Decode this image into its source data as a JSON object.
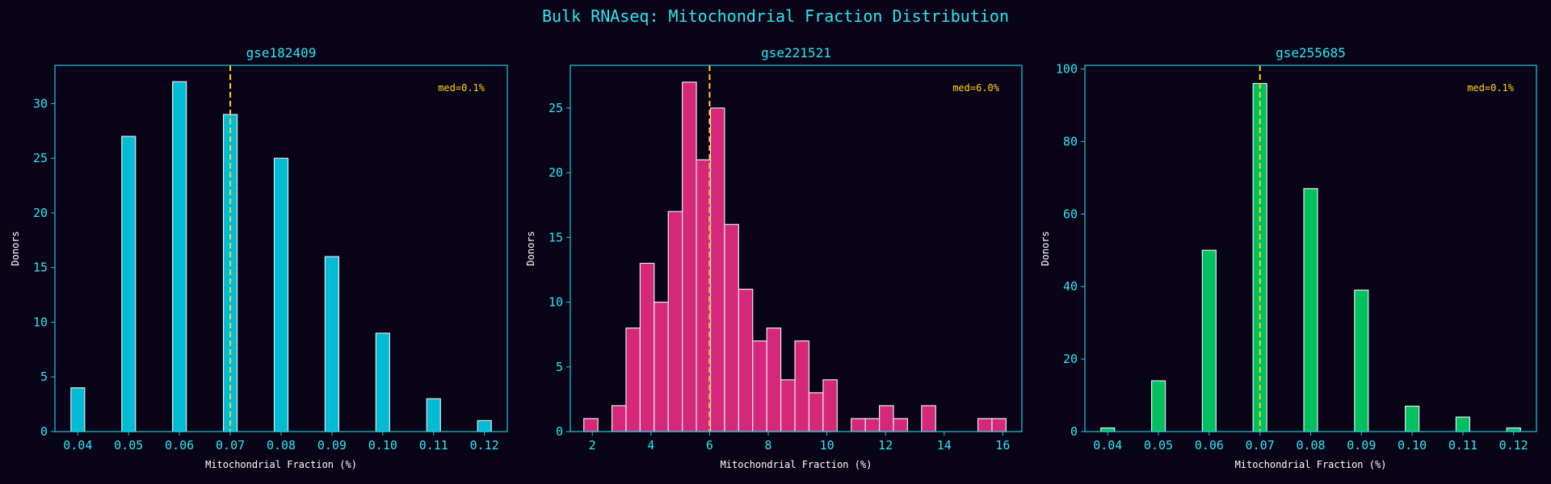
{
  "figure": {
    "title": "Bulk RNAseq: Mitochondrial Fraction Distribution",
    "background": "#0a0418",
    "axis_color": "#1ec8d8",
    "tick_color": "#2ee6f0",
    "median_color": "#ffd21f",
    "label_color": "#ffffff"
  },
  "chart_data": [
    {
      "type": "bar",
      "title": "gse182409",
      "xlabel": "Mitochondrial Fraction (%)",
      "ylabel": "Donors",
      "color": "#00bcd4",
      "xlim": [
        0.0355,
        0.1245
      ],
      "ylim": [
        0,
        33.5
      ],
      "xticks": [
        0.04,
        0.05,
        0.06,
        0.07,
        0.08,
        0.09,
        0.1,
        0.11,
        0.12
      ],
      "xtick_labels": [
        "0.04",
        "0.05",
        "0.06",
        "0.07",
        "0.08",
        "0.09",
        "0.10",
        "0.11",
        "0.12"
      ],
      "yticks": [
        0,
        5,
        10,
        15,
        20,
        25,
        30
      ],
      "bin_width": 0.0027,
      "bins": [
        {
          "x": 0.04,
          "count": 4
        },
        {
          "x": 0.05,
          "count": 27
        },
        {
          "x": 0.06,
          "count": 32
        },
        {
          "x": 0.07,
          "count": 29
        },
        {
          "x": 0.08,
          "count": 25
        },
        {
          "x": 0.09,
          "count": 16
        },
        {
          "x": 0.1,
          "count": 9
        },
        {
          "x": 0.11,
          "count": 3
        },
        {
          "x": 0.12,
          "count": 1
        }
      ],
      "median_x": 0.07,
      "annotation": "med=0.1%"
    },
    {
      "type": "bar",
      "title": "gse221521",
      "xlabel": "Mitochondrial Fraction (%)",
      "ylabel": "Donors",
      "color": "#d6287a",
      "xlim": [
        1.25,
        16.65
      ],
      "ylim": [
        0,
        28.3
      ],
      "xticks": [
        2,
        4,
        6,
        8,
        10,
        12,
        14,
        16
      ],
      "xtick_labels": [
        "2",
        "4",
        "6",
        "8",
        "10",
        "12",
        "14",
        "16"
      ],
      "yticks": [
        0,
        5,
        10,
        15,
        20,
        25
      ],
      "bin_width": 0.479,
      "bins": [
        {
          "x": 1.95,
          "count": 1
        },
        {
          "x": 2.43,
          "count": 0
        },
        {
          "x": 2.91,
          "count": 2
        },
        {
          "x": 3.39,
          "count": 8
        },
        {
          "x": 3.87,
          "count": 13
        },
        {
          "x": 4.35,
          "count": 10
        },
        {
          "x": 4.83,
          "count": 17
        },
        {
          "x": 5.31,
          "count": 27
        },
        {
          "x": 5.79,
          "count": 21
        },
        {
          "x": 6.27,
          "count": 25
        },
        {
          "x": 6.75,
          "count": 16
        },
        {
          "x": 7.23,
          "count": 11
        },
        {
          "x": 7.71,
          "count": 7
        },
        {
          "x": 8.19,
          "count": 8
        },
        {
          "x": 8.67,
          "count": 4
        },
        {
          "x": 9.15,
          "count": 7
        },
        {
          "x": 9.63,
          "count": 3
        },
        {
          "x": 10.11,
          "count": 4
        },
        {
          "x": 10.59,
          "count": 0
        },
        {
          "x": 11.07,
          "count": 1
        },
        {
          "x": 11.55,
          "count": 1
        },
        {
          "x": 12.03,
          "count": 2
        },
        {
          "x": 12.51,
          "count": 1
        },
        {
          "x": 12.99,
          "count": 0
        },
        {
          "x": 13.47,
          "count": 2
        },
        {
          "x": 13.95,
          "count": 0
        },
        {
          "x": 14.43,
          "count": 0
        },
        {
          "x": 14.91,
          "count": 0
        },
        {
          "x": 15.39,
          "count": 1
        },
        {
          "x": 15.87,
          "count": 1
        }
      ],
      "median_x": 6.0,
      "annotation": "med=6.0%"
    },
    {
      "type": "bar",
      "title": "gse255685",
      "xlabel": "Mitochondrial Fraction (%)",
      "ylabel": "Donors",
      "color": "#00c060",
      "xlim": [
        0.0355,
        0.1245
      ],
      "ylim": [
        0,
        101
      ],
      "xticks": [
        0.04,
        0.05,
        0.06,
        0.07,
        0.08,
        0.09,
        0.1,
        0.11,
        0.12
      ],
      "xtick_labels": [
        "0.04",
        "0.05",
        "0.06",
        "0.07",
        "0.08",
        "0.09",
        "0.10",
        "0.11",
        "0.12"
      ],
      "yticks": [
        0,
        20,
        40,
        60,
        80,
        100
      ],
      "bin_width": 0.0027,
      "bins": [
        {
          "x": 0.04,
          "count": 1
        },
        {
          "x": 0.05,
          "count": 14
        },
        {
          "x": 0.06,
          "count": 50
        },
        {
          "x": 0.07,
          "count": 96
        },
        {
          "x": 0.08,
          "count": 67
        },
        {
          "x": 0.09,
          "count": 39
        },
        {
          "x": 0.1,
          "count": 7
        },
        {
          "x": 0.11,
          "count": 4
        },
        {
          "x": 0.12,
          "count": 1
        }
      ],
      "median_x": 0.07,
      "annotation": "med=0.1%"
    }
  ]
}
